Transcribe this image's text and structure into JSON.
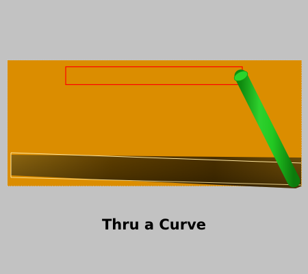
{
  "viewport": {
    "background": "#c2c2c2",
    "plate_color": "#db8d00",
    "boundary_color": "#c0c0c0",
    "selection_color": "#ff0000",
    "curve_edge_color": "#ffffb8",
    "cylinder_color": "#1ec21e"
  },
  "caption": {
    "text": "Thru a Curve"
  }
}
